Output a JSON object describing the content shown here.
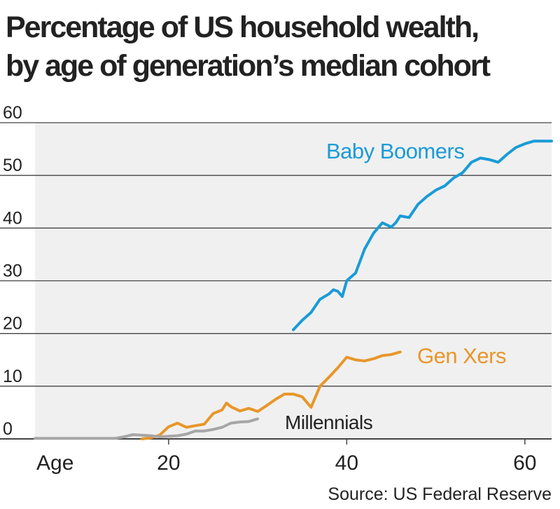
{
  "title": "Percentage of US household wealth,",
  "subtitle": "by age of generation’s median cohort",
  "source": "Source: US Federal Reserve",
  "chart_data": {
    "type": "line",
    "xlabel": "Age",
    "ylabel": "",
    "xlim": [
      5,
      63
    ],
    "ylim": [
      0,
      60
    ],
    "xticks": [
      20,
      40,
      60
    ],
    "yticks": [
      0,
      10,
      20,
      30,
      40,
      50,
      60
    ],
    "grid": true,
    "series": [
      {
        "name": "Baby Boomers",
        "color": "#1a9bd7",
        "x": [
          34,
          35,
          36,
          37,
          38,
          38.5,
          39,
          39.5,
          40,
          41,
          42,
          43,
          44,
          45,
          45.5,
          46,
          47,
          48,
          49,
          50,
          51,
          52,
          53,
          54,
          55,
          56,
          57,
          58,
          59,
          60,
          61,
          62,
          63
        ],
        "values": [
          20.7,
          22.5,
          24,
          26.5,
          27.5,
          28.3,
          28,
          27,
          30,
          31.5,
          36,
          39,
          41,
          40.2,
          41,
          42.3,
          42,
          44.5,
          46,
          47.2,
          48,
          49.5,
          50.5,
          52.5,
          53.3,
          53,
          52.5,
          54,
          55.3,
          56,
          56.5,
          56.5,
          56.5
        ]
      },
      {
        "name": "Gen Xers",
        "color": "#e8962a",
        "x": [
          17,
          18,
          19,
          20,
          21,
          22,
          23,
          24,
          25,
          26,
          26.5,
          27,
          28,
          29,
          30,
          31,
          32,
          33,
          34,
          35,
          36,
          37,
          38,
          39,
          40,
          41,
          42,
          43,
          44,
          45,
          46
        ],
        "values": [
          0,
          0.2,
          0.7,
          2.3,
          3,
          2.2,
          2.5,
          2.8,
          4.8,
          5.5,
          6.8,
          6.1,
          5.3,
          5.8,
          5.2,
          6.3,
          7.5,
          8.5,
          8.5,
          8,
          6,
          10,
          11.7,
          13.5,
          15.5,
          15,
          14.8,
          15.2,
          15.8,
          16,
          16.5
        ]
      },
      {
        "name": "Millennials",
        "color": "#a6a6a6",
        "x": [
          5,
          14,
          15,
          16,
          17,
          18,
          19,
          20,
          21,
          22,
          23,
          24,
          25,
          26,
          27,
          28,
          29,
          30
        ],
        "values": [
          0.1,
          0.1,
          0.4,
          0.8,
          0.7,
          0.6,
          0.4,
          0.5,
          0.6,
          0.9,
          1.5,
          1.5,
          1.8,
          2.2,
          3,
          3.2,
          3.3,
          3.8
        ]
      }
    ]
  }
}
